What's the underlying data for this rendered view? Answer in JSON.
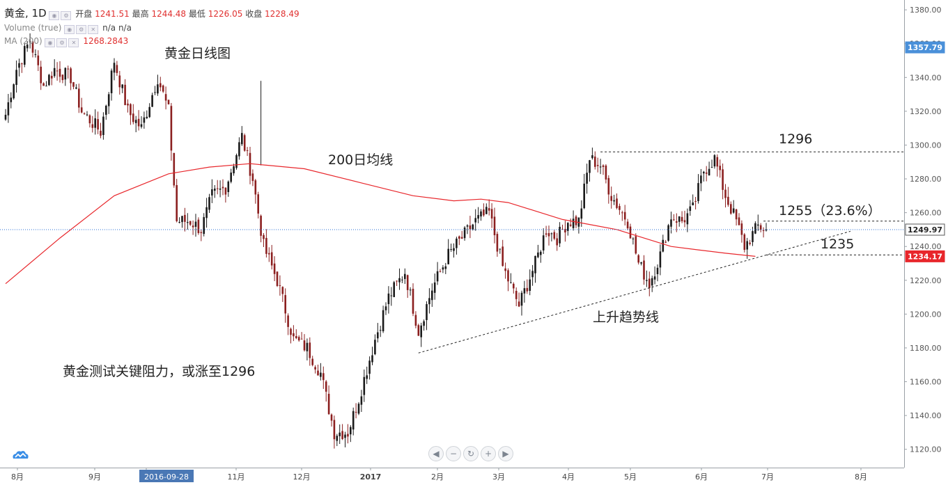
{
  "header": {
    "symbol": "黄金, 1D",
    "open_label": "开盘",
    "open": "1241.51",
    "high_label": "最高",
    "high": "1244.48",
    "low_label": "最低",
    "low": "1226.05",
    "close_label": "收盘",
    "close": "1228.49",
    "volume_label": "Volume (true)",
    "volume_v1": "n/a",
    "volume_v2": "n/a",
    "ma_label": "MA (200)",
    "ma_value": "1268.2843"
  },
  "annotations": {
    "chart_title": "黄金日线图",
    "ma_label": "200日均线",
    "trend_label": "上升趋势线",
    "subtitle": "黄金测试关键阻力，或涨至1296",
    "level_1296": "1296",
    "level_1255": "1255（23.6%）",
    "level_1235": "1235"
  },
  "price_tags": {
    "ma_top": "1357.79",
    "last": "1249.97",
    "ma_now": "1234.17"
  },
  "colors": {
    "up": "#1a1a1a",
    "down": "#8b1f1f",
    "ma": "#e8262b",
    "last_line": "#2a6fd6",
    "tag_blue": "#4a90d9",
    "tag_red": "#e8262b"
  },
  "chart_data": {
    "type": "candlestick",
    "ylim": [
      1110,
      1385
    ],
    "yticks": [
      1120,
      1140,
      1160,
      1180,
      1200,
      1220,
      1240,
      1260,
      1280,
      1300,
      1320,
      1340,
      1360,
      1380
    ],
    "y_tick_labels": [
      "1120.00",
      "1140.00",
      "1160.00",
      "1180.00",
      "1200.00",
      "1220.00",
      "1240.00",
      "1260.00",
      "1280.00",
      "1300.00",
      "1320.00",
      "1340.00",
      "1360.00",
      "1380.00"
    ],
    "x_axis_labels": [
      "8月",
      "9月",
      "2016-09-28",
      "11月",
      "12月",
      "2017",
      "2月",
      "3月",
      "4月",
      "5月",
      "6月",
      "7月",
      "8月"
    ],
    "highlighted_x_label": "2016-09-28",
    "ohlc_anchors": [
      {
        "t": 0,
        "c": 1318
      },
      {
        "t": 4,
        "c": 1345
      },
      {
        "t": 9,
        "c": 1362
      },
      {
        "t": 14,
        "c": 1335
      },
      {
        "t": 18,
        "c": 1345
      },
      {
        "t": 24,
        "c": 1340
      },
      {
        "t": 28,
        "c": 1320
      },
      {
        "t": 35,
        "c": 1308
      },
      {
        "t": 40,
        "c": 1350
      },
      {
        "t": 45,
        "c": 1320
      },
      {
        "t": 50,
        "c": 1310
      },
      {
        "t": 56,
        "c": 1340
      },
      {
        "t": 60,
        "c": 1320
      },
      {
        "t": 63,
        "c": 1255
      },
      {
        "t": 68,
        "c": 1255
      },
      {
        "t": 72,
        "c": 1250
      },
      {
        "t": 76,
        "c": 1270
      },
      {
        "t": 81,
        "c": 1275
      },
      {
        "t": 87,
        "c": 1305
      },
      {
        "t": 91,
        "c": 1280
      },
      {
        "t": 95,
        "c": 1240
      },
      {
        "t": 100,
        "c": 1220
      },
      {
        "t": 106,
        "c": 1185
      },
      {
        "t": 111,
        "c": 1180
      },
      {
        "t": 116,
        "c": 1165
      },
      {
        "t": 121,
        "c": 1130
      },
      {
        "t": 126,
        "c": 1130
      },
      {
        "t": 130,
        "c": 1150
      },
      {
        "t": 136,
        "c": 1185
      },
      {
        "t": 141,
        "c": 1210
      },
      {
        "t": 147,
        "c": 1225
      },
      {
        "t": 152,
        "c": 1190
      },
      {
        "t": 157,
        "c": 1215
      },
      {
        "t": 163,
        "c": 1235
      },
      {
        "t": 168,
        "c": 1245
      },
      {
        "t": 173,
        "c": 1255
      },
      {
        "t": 178,
        "c": 1260
      },
      {
        "t": 183,
        "c": 1228
      },
      {
        "t": 189,
        "c": 1205
      },
      {
        "t": 195,
        "c": 1230
      },
      {
        "t": 199,
        "c": 1250
      },
      {
        "t": 203,
        "c": 1245
      },
      {
        "t": 207,
        "c": 1255
      },
      {
        "t": 211,
        "c": 1255
      },
      {
        "t": 215,
        "c": 1292
      },
      {
        "t": 219,
        "c": 1288
      },
      {
        "t": 223,
        "c": 1270
      },
      {
        "t": 229,
        "c": 1255
      },
      {
        "t": 233,
        "c": 1230
      },
      {
        "t": 237,
        "c": 1218
      },
      {
        "t": 241,
        "c": 1235
      },
      {
        "t": 245,
        "c": 1258
      },
      {
        "t": 249,
        "c": 1255
      },
      {
        "t": 253,
        "c": 1262
      },
      {
        "t": 257,
        "c": 1285
      },
      {
        "t": 261,
        "c": 1292
      },
      {
        "t": 265,
        "c": 1270
      },
      {
        "t": 269,
        "c": 1255
      },
      {
        "t": 272,
        "c": 1240
      },
      {
        "t": 277,
        "c": 1252
      },
      {
        "t": 280,
        "c": 1249.97
      }
    ],
    "ma200": [
      {
        "t": 0,
        "v": 1218
      },
      {
        "t": 20,
        "v": 1245
      },
      {
        "t": 40,
        "v": 1270
      },
      {
        "t": 60,
        "v": 1283
      },
      {
        "t": 75,
        "v": 1287
      },
      {
        "t": 90,
        "v": 1289
      },
      {
        "t": 110,
        "v": 1286
      },
      {
        "t": 130,
        "v": 1278
      },
      {
        "t": 150,
        "v": 1270
      },
      {
        "t": 165,
        "v": 1267
      },
      {
        "t": 175,
        "v": 1268
      },
      {
        "t": 185,
        "v": 1266
      },
      {
        "t": 195,
        "v": 1261
      },
      {
        "t": 205,
        "v": 1256
      },
      {
        "t": 215,
        "v": 1253
      },
      {
        "t": 225,
        "v": 1250
      },
      {
        "t": 235,
        "v": 1245
      },
      {
        "t": 245,
        "v": 1240
      },
      {
        "t": 255,
        "v": 1238
      },
      {
        "t": 265,
        "v": 1236
      },
      {
        "t": 276,
        "v": 1234.17
      }
    ],
    "levels": [
      {
        "value": 1296,
        "label": "1296"
      },
      {
        "value": 1255,
        "label": "1255（23.6%）"
      },
      {
        "value": 1235,
        "label": "1235"
      }
    ],
    "trendline": [
      {
        "t": 152,
        "y": 1177
      },
      {
        "t": 311,
        "y": 1249
      }
    ],
    "last_price": 1249.97
  }
}
